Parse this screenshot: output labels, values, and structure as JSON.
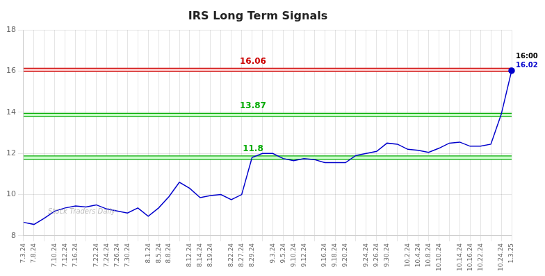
{
  "chart_data": {
    "type": "line",
    "title": "IRS Long Term Signals",
    "categories": [
      "7.3.24",
      "7.8.24",
      null,
      "7.10.24",
      "7.12.24",
      "7.16.24",
      null,
      "7.22.24",
      "7.24.24",
      "7.26.24",
      "7.30.24",
      null,
      "8.1.24",
      "8.5.24",
      "8.8.24",
      null,
      "8.12.24",
      "8.14.24",
      "8.19.24",
      null,
      "8.22.24",
      "8.27.24",
      "8.29.24",
      null,
      "9.3.24",
      "9.5.24",
      "9.10.24",
      "9.12.24",
      null,
      "9.16.24",
      "9.18.24",
      "9.20.24",
      null,
      "9.24.24",
      "9.26.24",
      "9.30.24",
      null,
      "10.2.24",
      "10.4.24",
      "10.8.24",
      "10.10.24",
      null,
      "10.14.24",
      "10.16.24",
      "10.22.24",
      null,
      "10.24.24",
      "1.3.25"
    ],
    "values": [
      8.65,
      8.55,
      8.85,
      9.2,
      9.35,
      9.45,
      9.4,
      9.5,
      9.3,
      9.2,
      9.1,
      9.35,
      8.95,
      9.35,
      9.9,
      10.6,
      10.3,
      9.85,
      9.95,
      10.0,
      9.75,
      10.0,
      11.8,
      12.0,
      12.0,
      11.75,
      11.65,
      11.75,
      11.7,
      11.55,
      11.55,
      11.55,
      11.9,
      12.0,
      12.1,
      12.5,
      12.45,
      12.2,
      12.15,
      12.05,
      12.25,
      12.5,
      12.55,
      12.35,
      12.35,
      12.45,
      13.9,
      16.02
    ],
    "color": "#0000cc",
    "ylim": [
      8,
      18
    ],
    "yticks": [
      8,
      10,
      12,
      14,
      16,
      18
    ],
    "grid": true,
    "hlines": [
      {
        "value": 16.06,
        "label": "16.06",
        "color": "#cc0000",
        "band_color": "#ffcccc"
      },
      {
        "value": 13.87,
        "label": "13.87",
        "color": "#00aa00",
        "band_color": "#ccffcc"
      },
      {
        "value": 11.8,
        "label": "11.8",
        "color": "#00aa00",
        "band_color": "#ccffcc"
      }
    ],
    "band_half": 0.08,
    "end_labels": [
      {
        "text": "16:00",
        "color": "#000000"
      },
      {
        "text": "16.02",
        "color": "#0000cc"
      }
    ],
    "watermark": "Stock Traders Daily"
  }
}
